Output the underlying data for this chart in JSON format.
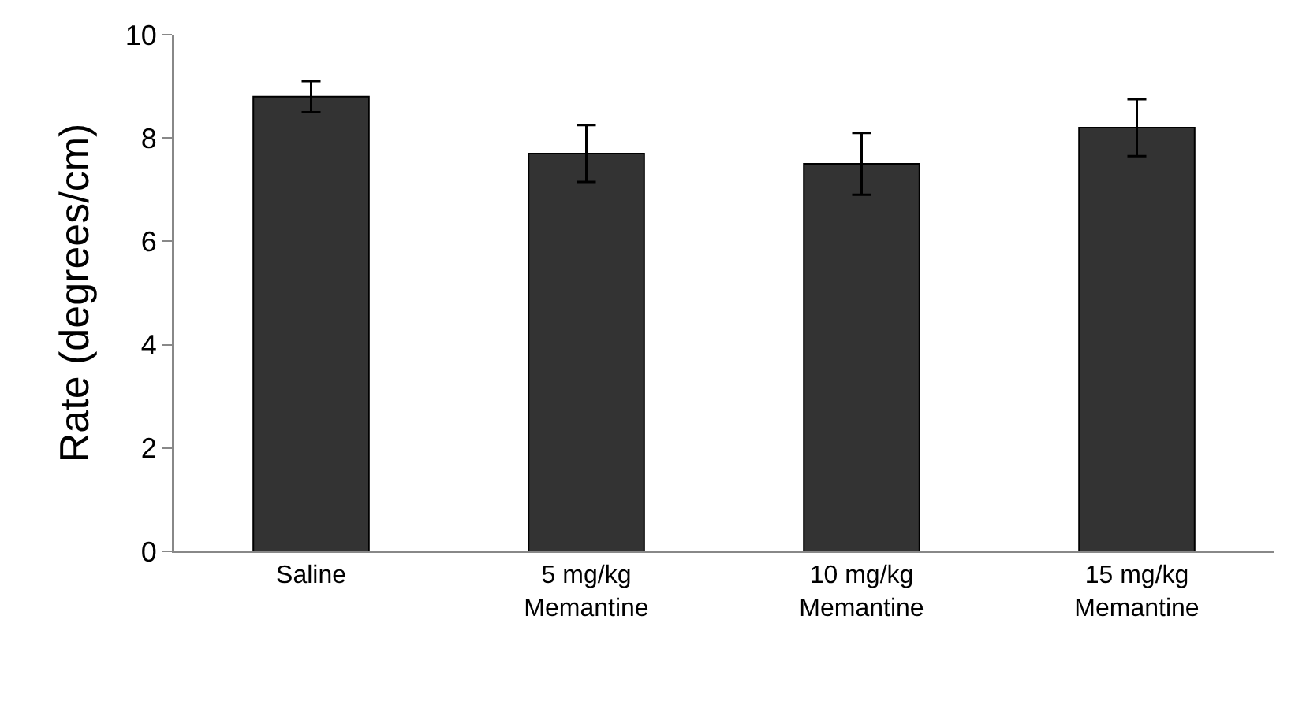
{
  "chart_data": {
    "type": "bar",
    "ylabel": "Rate (degrees/cm)",
    "categories": [
      "Saline",
      "5 mg/kg\nMemantine",
      "10 mg/kg\nMemantine",
      "15 mg/kg\nMemantine"
    ],
    "values": [
      8.8,
      7.7,
      7.5,
      8.2
    ],
    "errors": [
      0.3,
      0.55,
      0.6,
      0.55
    ],
    "color": "#333333",
    "ylim": [
      0,
      10
    ],
    "yticks": [
      0,
      2,
      4,
      6,
      8,
      10
    ]
  }
}
